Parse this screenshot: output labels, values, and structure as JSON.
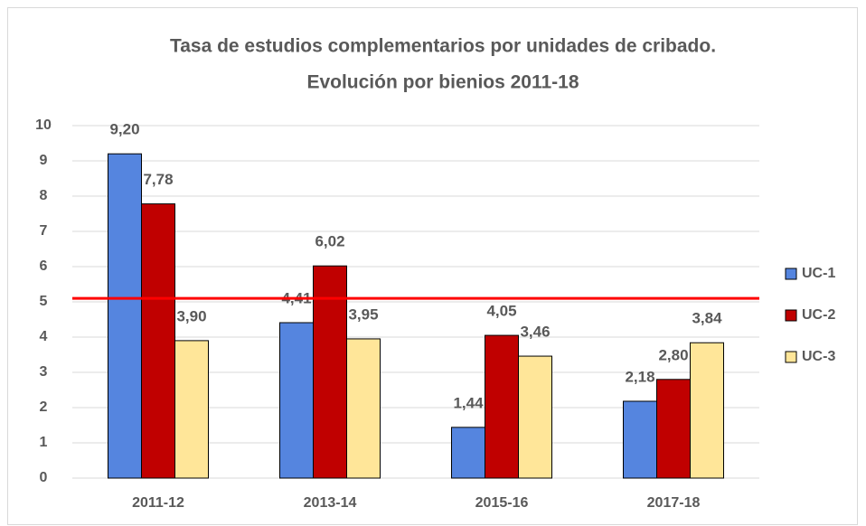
{
  "chart_data": {
    "type": "bar",
    "title": [
      "Tasa de estudios complementarios por unidades de cribado.",
      "Evolución por bienios 2011-18"
    ],
    "categories": [
      "2011-12",
      "2013-14",
      "2015-16",
      "2017-18"
    ],
    "series": [
      {
        "name": "UC-1",
        "color": "#5585df",
        "values": [
          9.2,
          4.41,
          1.44,
          2.18
        ],
        "value_labels": [
          "9,20",
          "4,41",
          "1,44",
          "2,18"
        ]
      },
      {
        "name": "UC-2",
        "color": "#c00000",
        "values": [
          7.78,
          6.02,
          4.05,
          2.8
        ],
        "value_labels": [
          "7,78",
          "6,02",
          "4,05",
          "2,80"
        ]
      },
      {
        "name": "UC-3",
        "color": "#ffe699",
        "values": [
          3.9,
          3.95,
          3.46,
          3.84
        ],
        "value_labels": [
          "3,90",
          "3,95",
          "3,46",
          "3,84"
        ]
      }
    ],
    "ylim": [
      0,
      10
    ],
    "yticks": [
      0,
      1,
      2,
      3,
      4,
      5,
      6,
      7,
      8,
      9,
      10
    ],
    "grid": true,
    "reference_line": {
      "value": 5.1,
      "color": "#ff0000"
    },
    "legend": "right"
  }
}
